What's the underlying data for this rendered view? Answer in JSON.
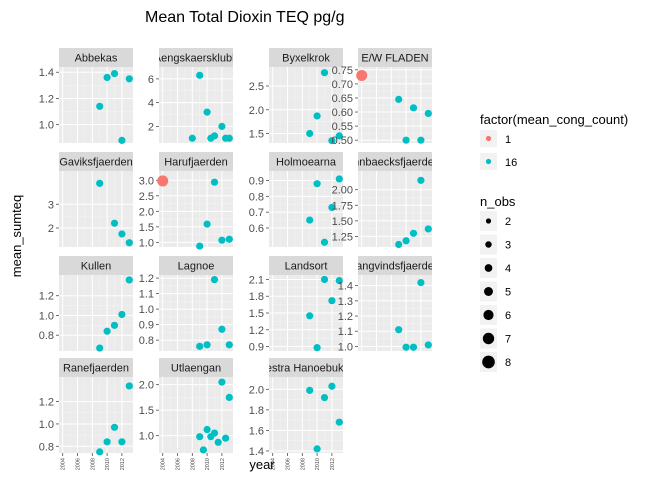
{
  "chart_data": {
    "type": "scatter",
    "title": "Mean Total Dioxin TEQ pg/g",
    "xlabel": "year",
    "ylabel": "mean_sumteq",
    "xlim": [
      2003.5,
      2013.5
    ],
    "x_ticks": [
      2004,
      2006,
      2008,
      2010,
      2012
    ],
    "x_tick_labels": [
      "2004",
      "2006",
      "2008",
      "2010",
      "2012"
    ],
    "grid": true,
    "facet_layout": {
      "columns": 4,
      "rows": 4,
      "scales": "free_y"
    },
    "color_legend": {
      "title": "factor(mean_cong_count)",
      "entries": [
        {
          "label": "1",
          "color": "#F8766D"
        },
        {
          "label": "16",
          "color": "#00BFC4"
        }
      ]
    },
    "size_legend": {
      "title": "n_obs",
      "entries": [
        {
          "label": "2",
          "value": 2
        },
        {
          "label": "3",
          "value": 3
        },
        {
          "label": "4",
          "value": 4
        },
        {
          "label": "5",
          "value": 5
        },
        {
          "label": "6",
          "value": 6
        },
        {
          "label": "7",
          "value": 7
        },
        {
          "label": "8",
          "value": 8
        }
      ]
    },
    "panels": [
      {
        "name": "Abbekas",
        "ylim": [
          0.86,
          1.44
        ],
        "y_ticks": [
          1.0,
          1.2,
          1.4
        ],
        "y_tick_labels": [
          "1.0",
          "1.2",
          "1.4"
        ],
        "points": [
          {
            "x": 2009,
            "y": 1.14,
            "group": "16"
          },
          {
            "x": 2010,
            "y": 1.36,
            "group": "16"
          },
          {
            "x": 2011,
            "y": 1.39,
            "group": "16"
          },
          {
            "x": 2012,
            "y": 0.88,
            "group": "16"
          },
          {
            "x": 2013,
            "y": 1.35,
            "group": "16"
          }
        ]
      },
      {
        "name": "Aengskaersklubb",
        "ylim": [
          0.6,
          7.0
        ],
        "y_ticks": [
          2,
          4,
          6
        ],
        "y_tick_labels": [
          "2",
          "4",
          "6"
        ],
        "points": [
          {
            "x": 2008,
            "y": 1.0,
            "group": "16"
          },
          {
            "x": 2009,
            "y": 6.3,
            "group": "16"
          },
          {
            "x": 2010,
            "y": 3.2,
            "group": "16"
          },
          {
            "x": 2010.5,
            "y": 1.0,
            "group": "16"
          },
          {
            "x": 2011,
            "y": 1.2,
            "group": "16"
          },
          {
            "x": 2012,
            "y": 2.0,
            "group": "16"
          },
          {
            "x": 2012.5,
            "y": 1.0,
            "group": "16"
          },
          {
            "x": 2013,
            "y": 1.0,
            "group": "16"
          }
        ]
      },
      {
        "name": "Byxelkrok",
        "ylim": [
          1.3,
          2.9
        ],
        "y_ticks": [
          1.5,
          2.0,
          2.5
        ],
        "y_tick_labels": [
          "1.5",
          "2.0",
          "2.5"
        ],
        "points": [
          {
            "x": 2009,
            "y": 1.5,
            "group": "16"
          },
          {
            "x": 2010,
            "y": 1.87,
            "group": "16"
          },
          {
            "x": 2011,
            "y": 2.78,
            "group": "16"
          },
          {
            "x": 2012,
            "y": 1.35,
            "group": "16"
          },
          {
            "x": 2013,
            "y": 1.45,
            "group": "16"
          }
        ]
      },
      {
        "name": "E/W FLADEN",
        "ylim": [
          0.49,
          0.76
        ],
        "y_ticks": [
          0.5,
          0.55,
          0.6,
          0.65,
          0.7,
          0.75
        ],
        "y_tick_labels": [
          "0.50",
          "0.55",
          "0.60",
          "0.65",
          "0.70",
          "0.75"
        ],
        "points": [
          {
            "x": 2004,
            "y": 0.73,
            "group": "1"
          },
          {
            "x": 2009,
            "y": 0.645,
            "group": "16"
          },
          {
            "x": 2010,
            "y": 0.5,
            "group": "16"
          },
          {
            "x": 2011,
            "y": 0.615,
            "group": "16"
          },
          {
            "x": 2012,
            "y": 0.5,
            "group": "16"
          },
          {
            "x": 2013,
            "y": 0.595,
            "group": "16"
          }
        ]
      },
      {
        "name": "Gaviksfjaerden",
        "ylim": [
          1.2,
          4.4
        ],
        "y_ticks": [
          2,
          3
        ],
        "y_tick_labels": [
          "2",
          "3"
        ],
        "points": [
          {
            "x": 2009,
            "y": 3.88,
            "group": "16"
          },
          {
            "x": 2011,
            "y": 2.2,
            "group": "16"
          },
          {
            "x": 2012,
            "y": 1.75,
            "group": "16"
          },
          {
            "x": 2013,
            "y": 1.38,
            "group": "16"
          }
        ]
      },
      {
        "name": "Harufjaerden",
        "ylim": [
          0.85,
          3.3
        ],
        "y_ticks": [
          1.0,
          1.5,
          2.0,
          2.5,
          3.0
        ],
        "y_tick_labels": [
          "1.0",
          "1.5",
          "2.0",
          "2.5",
          "3.0"
        ],
        "points": [
          {
            "x": 2004,
            "y": 2.98,
            "group": "1"
          },
          {
            "x": 2009,
            "y": 0.88,
            "group": "16"
          },
          {
            "x": 2010,
            "y": 1.59,
            "group": "16"
          },
          {
            "x": 2011,
            "y": 2.94,
            "group": "16"
          },
          {
            "x": 2012,
            "y": 1.07,
            "group": "16"
          },
          {
            "x": 2013,
            "y": 1.1,
            "group": "16"
          }
        ]
      },
      {
        "name": "Holmoearna",
        "ylim": [
          0.48,
          0.96
        ],
        "y_ticks": [
          0.6,
          0.7,
          0.8,
          0.9
        ],
        "y_tick_labels": [
          "0.6",
          "0.7",
          "0.8",
          "0.9"
        ],
        "points": [
          {
            "x": 2009,
            "y": 0.65,
            "group": "16"
          },
          {
            "x": 2010,
            "y": 0.88,
            "group": "16"
          },
          {
            "x": 2011,
            "y": 0.51,
            "group": "16"
          },
          {
            "x": 2012,
            "y": 0.73,
            "group": "16"
          },
          {
            "x": 2013,
            "y": 0.91,
            "group": "16"
          }
        ]
      },
      {
        "name": "Innbaecksfjaerden",
        "ylim": [
          1.08,
          2.3
        ],
        "y_ticks": [
          1.25,
          1.5,
          1.75,
          2.0
        ],
        "y_tick_labels": [
          "1.25",
          "1.50",
          "1.75",
          "2.00"
        ],
        "points": [
          {
            "x": 2009,
            "y": 1.12,
            "group": "16"
          },
          {
            "x": 2010,
            "y": 1.18,
            "group": "16"
          },
          {
            "x": 2011,
            "y": 1.3,
            "group": "16"
          },
          {
            "x": 2012,
            "y": 2.15,
            "group": "16"
          },
          {
            "x": 2013,
            "y": 1.37,
            "group": "16"
          }
        ]
      },
      {
        "name": "Kullen",
        "ylim": [
          0.64,
          1.41
        ],
        "y_ticks": [
          0.8,
          1.0,
          1.2
        ],
        "y_tick_labels": [
          "0.8",
          "1.0",
          "1.2"
        ],
        "points": [
          {
            "x": 2009,
            "y": 0.67,
            "group": "16"
          },
          {
            "x": 2010,
            "y": 0.84,
            "group": "16"
          },
          {
            "x": 2011,
            "y": 0.9,
            "group": "16"
          },
          {
            "x": 2012,
            "y": 1.01,
            "group": "16"
          },
          {
            "x": 2013,
            "y": 1.36,
            "group": "16"
          }
        ]
      },
      {
        "name": "Lagnoe",
        "ylim": [
          0.73,
          1.22
        ],
        "y_ticks": [
          0.8,
          0.9,
          1.0,
          1.1,
          1.2
        ],
        "y_tick_labels": [
          "0.8",
          "0.9",
          "1.0",
          "1.1",
          "1.2"
        ],
        "points": [
          {
            "x": 2009,
            "y": 0.76,
            "group": "16"
          },
          {
            "x": 2010,
            "y": 0.77,
            "group": "16"
          },
          {
            "x": 2011,
            "y": 1.19,
            "group": "16"
          },
          {
            "x": 2012,
            "y": 0.87,
            "group": "16"
          },
          {
            "x": 2013,
            "y": 0.77,
            "group": "16"
          }
        ]
      },
      {
        "name": "Landsort",
        "ylim": [
          0.82,
          2.18
        ],
        "y_ticks": [
          0.9,
          1.2,
          1.5,
          1.8,
          2.1
        ],
        "y_tick_labels": [
          "0.9",
          "1.2",
          "1.5",
          "1.8",
          "2.1"
        ],
        "points": [
          {
            "x": 2009,
            "y": 1.45,
            "group": "16"
          },
          {
            "x": 2010,
            "y": 0.88,
            "group": "16"
          },
          {
            "x": 2011,
            "y": 2.1,
            "group": "16"
          },
          {
            "x": 2012,
            "y": 1.72,
            "group": "16"
          },
          {
            "x": 2013,
            "y": 2.08,
            "group": "16"
          }
        ]
      },
      {
        "name": "Langvindsfjaerden",
        "ylim": [
          0.97,
          1.47
        ],
        "y_ticks": [
          1.0,
          1.1,
          1.2,
          1.3,
          1.4
        ],
        "y_tick_labels": [
          "1.0",
          "1.1",
          "1.2",
          "1.3",
          "1.4"
        ],
        "points": [
          {
            "x": 2009,
            "y": 1.11,
            "group": "16"
          },
          {
            "x": 2010,
            "y": 0.995,
            "group": "16"
          },
          {
            "x": 2011,
            "y": 0.995,
            "group": "16"
          },
          {
            "x": 2012,
            "y": 1.42,
            "group": "16"
          },
          {
            "x": 2013,
            "y": 1.01,
            "group": "16"
          }
        ]
      },
      {
        "name": "Ranefjaerden",
        "ylim": [
          0.74,
          1.42
        ],
        "y_ticks": [
          0.8,
          1.0,
          1.2
        ],
        "y_tick_labels": [
          "0.8",
          "1.0",
          "1.2"
        ],
        "points": [
          {
            "x": 2009,
            "y": 0.75,
            "group": "16"
          },
          {
            "x": 2010,
            "y": 0.84,
            "group": "16"
          },
          {
            "x": 2011,
            "y": 0.97,
            "group": "16"
          },
          {
            "x": 2012,
            "y": 0.84,
            "group": "16"
          },
          {
            "x": 2013,
            "y": 1.34,
            "group": "16"
          }
        ]
      },
      {
        "name": "Utlaengan",
        "ylim": [
          0.66,
          2.15
        ],
        "y_ticks": [
          1.0,
          1.5,
          2.0
        ],
        "y_tick_labels": [
          "1.0",
          "1.5",
          "2.0"
        ],
        "points": [
          {
            "x": 2009,
            "y": 0.98,
            "group": "16"
          },
          {
            "x": 2009.5,
            "y": 0.72,
            "group": "16"
          },
          {
            "x": 2010,
            "y": 1.12,
            "group": "16"
          },
          {
            "x": 2010.5,
            "y": 0.98,
            "group": "16"
          },
          {
            "x": 2011,
            "y": 1.05,
            "group": "16"
          },
          {
            "x": 2011.5,
            "y": 0.87,
            "group": "16"
          },
          {
            "x": 2012,
            "y": 2.05,
            "group": "16"
          },
          {
            "x": 2012.5,
            "y": 0.95,
            "group": "16"
          },
          {
            "x": 2013,
            "y": 1.75,
            "group": "16"
          }
        ]
      },
      {
        "name": "Vaestra Hanoebukten",
        "ylim": [
          1.38,
          2.12
        ],
        "y_ticks": [
          1.4,
          1.6,
          1.8,
          2.0
        ],
        "y_tick_labels": [
          "1.4",
          "1.6",
          "1.8",
          "2.0"
        ],
        "points": [
          {
            "x": 2009,
            "y": 1.99,
            "group": "16"
          },
          {
            "x": 2010,
            "y": 1.42,
            "group": "16"
          },
          {
            "x": 2011,
            "y": 1.92,
            "group": "16"
          },
          {
            "x": 2012,
            "y": 2.03,
            "group": "16"
          },
          {
            "x": 2013,
            "y": 1.68,
            "group": "16"
          }
        ]
      }
    ]
  }
}
